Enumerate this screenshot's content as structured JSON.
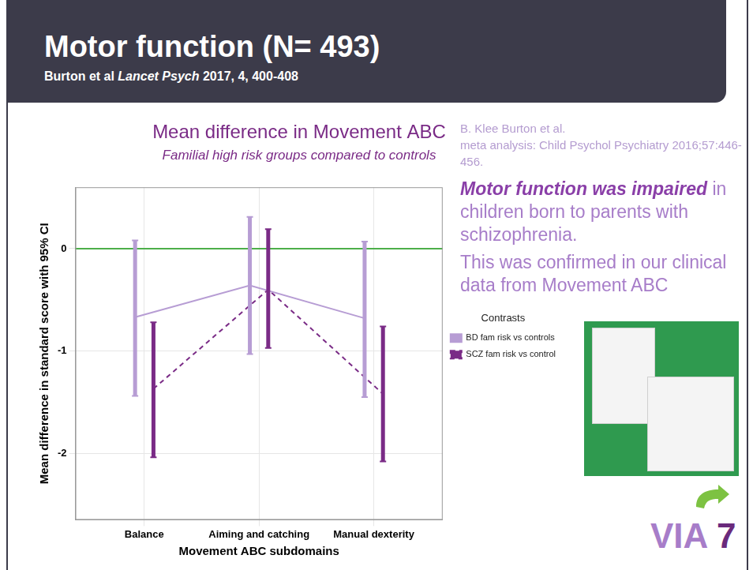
{
  "header": {
    "title": "Motor function (N= 493)",
    "citation": {
      "authors": "Burton et al",
      "journal": "Lancet Psych",
      "details": "2017, 4, 400-408"
    }
  },
  "chart_data": {
    "type": "line",
    "title": "Mean difference in Movement ABC",
    "subtitle": "Familial high risk groups compared to controls",
    "x_label": "Movement ABC subdomains",
    "y_label": "Mean difference in standard score with 95% CI",
    "categories": [
      "Balance",
      "Aiming and catching",
      "Manual dexterity"
    ],
    "series": [
      {
        "name": "BD fam risk vs controls",
        "color": "#b79dd4",
        "line_style": "solid",
        "values": [
          -0.67,
          -0.36,
          -0.68
        ],
        "ci_lower": [
          -1.44,
          -1.03,
          -1.45
        ],
        "ci_upper": [
          0.08,
          0.31,
          0.07
        ]
      },
      {
        "name": "SCZ fam risk vs control",
        "color": "#7a2b86",
        "line_style": "dashed",
        "values": [
          -1.37,
          -0.4,
          -1.42
        ],
        "ci_lower": [
          -2.04,
          -0.97,
          -2.08
        ],
        "ci_upper": [
          -0.72,
          0.19,
          -0.76
        ]
      }
    ],
    "ylim": [
      -2.65,
      0.6
    ],
    "yticks": [
      -2,
      -1,
      0
    ],
    "grid": true,
    "legend": "right",
    "legend_title": "Contrasts",
    "reference_lines": [
      {
        "value": 0,
        "color": "#4daf4a"
      }
    ]
  },
  "sidebar": {
    "reference": [
      "B. Klee Burton et al.",
      "meta analysis: Child Psychol Psychiatry 2016;57:446-456."
    ],
    "finding": {
      "emphasis": "Motor function was impaired",
      "rest": "in children born to parents with schizophrenia."
    },
    "confirmation": "This was confirmed in our clinical data from Movement ABC"
  },
  "logo": {
    "word": "VIA",
    "number": "7"
  }
}
